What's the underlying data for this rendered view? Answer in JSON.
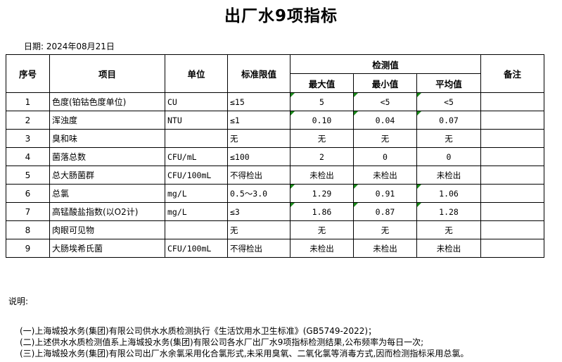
{
  "title": "出厂水9项指标",
  "date": "日期: 2024年08月21日",
  "headers": {
    "no": "序号",
    "item": "项目",
    "unit": "单位",
    "limit": "标准限值",
    "measured": "检测值",
    "max": "最大值",
    "min": "最小值",
    "avg": "平均值",
    "remark": "备注"
  },
  "rows": [
    {
      "no": "1",
      "item": "色度(铂钴色度单位)",
      "unit": "CU",
      "limit": "≤15",
      "max": "5",
      "min": "<5",
      "avg": "<5",
      "flag": true
    },
    {
      "no": "2",
      "item": "浑浊度",
      "unit": "NTU",
      "limit": "≤1",
      "max": "0.10",
      "min": "0.04",
      "avg": "0.07",
      "flag": true
    },
    {
      "no": "3",
      "item": "臭和味",
      "unit": "",
      "limit": "无",
      "max": "无",
      "min": "无",
      "avg": "无",
      "flag": false
    },
    {
      "no": "4",
      "item": "菌落总数",
      "unit": "CFU/mL",
      "limit": "≤100",
      "max": "2",
      "min": "0",
      "avg": "0",
      "flag": false
    },
    {
      "no": "5",
      "item": "总大肠菌群",
      "unit": "CFU/100mL",
      "limit": "不得检出",
      "max": "未检出",
      "min": "未检出",
      "avg": "未检出",
      "flag": false
    },
    {
      "no": "6",
      "item": "总氯",
      "unit": "mg/L",
      "limit": "0.5～3.0",
      "max": "1.29",
      "min": "0.91",
      "avg": "1.06",
      "flag": true
    },
    {
      "no": "7",
      "item": "高锰酸盐指数(以O2计)",
      "unit": "mg/L",
      "limit": "≤3",
      "max": "1.86",
      "min": "0.87",
      "avg": "1.28",
      "flag": true
    },
    {
      "no": "8",
      "item": "肉眼可见物",
      "unit": "",
      "limit": "无",
      "max": "无",
      "min": "无",
      "avg": "无",
      "flag": false
    },
    {
      "no": "9",
      "item": "大肠埃希氏菌",
      "unit": "CFU/100mL",
      "limit": "不得检出",
      "max": "未检出",
      "min": "未检出",
      "avg": "未检出",
      "flag": false
    }
  ],
  "notes": {
    "label": "说明:",
    "items": [
      "(一)上海城投水务(集团)有限公司供水水质检测执行《生活饮用水卫生标准》(GB5749-2022)；",
      "(二)上述供水水质检测值系上海城投水务(集团)有限公司各水厂出厂水9项指标检测结果,公布频率为每日一次;",
      "(三)上海城投水务(集团)有限公司出厂水余氯采用化合氯形式,未采用臭氧、二氧化氯等消毒方式,因而检测指标采用总氯。"
    ]
  },
  "colors": {
    "flag": "#1a8a1a"
  }
}
